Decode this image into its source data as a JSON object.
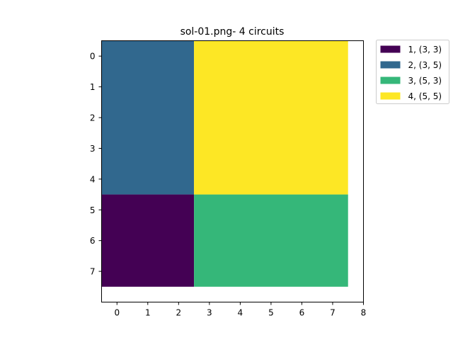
{
  "chart_data": {
    "type": "heatmap",
    "title": "sol-01.png- 4 circuits",
    "xlabel": "",
    "ylabel": "",
    "xlim": [
      -0.5,
      8
    ],
    "ylim": [
      8,
      -0.5
    ],
    "x_ticks": [
      0,
      1,
      2,
      3,
      4,
      5,
      6,
      7,
      8
    ],
    "y_ticks": [
      0,
      1,
      2,
      3,
      4,
      5,
      6,
      7
    ],
    "grid": false,
    "legend_position": "outside-top-right",
    "blocks": [
      {
        "label": "1, (3, 3)",
        "x0": -0.5,
        "x1": 2.5,
        "y0": 4.5,
        "y1": 7.5,
        "color": "#440154"
      },
      {
        "label": "2, (3, 5)",
        "x0": -0.5,
        "x1": 2.5,
        "y0": -0.5,
        "y1": 4.5,
        "color": "#31688e"
      },
      {
        "label": "3, (5, 3)",
        "x0": 2.5,
        "x1": 7.5,
        "y0": 4.5,
        "y1": 7.5,
        "color": "#35b779"
      },
      {
        "label": "4, (5, 5)",
        "x0": 2.5,
        "x1": 7.5,
        "y0": -0.5,
        "y1": 4.5,
        "color": "#fde725"
      }
    ]
  }
}
